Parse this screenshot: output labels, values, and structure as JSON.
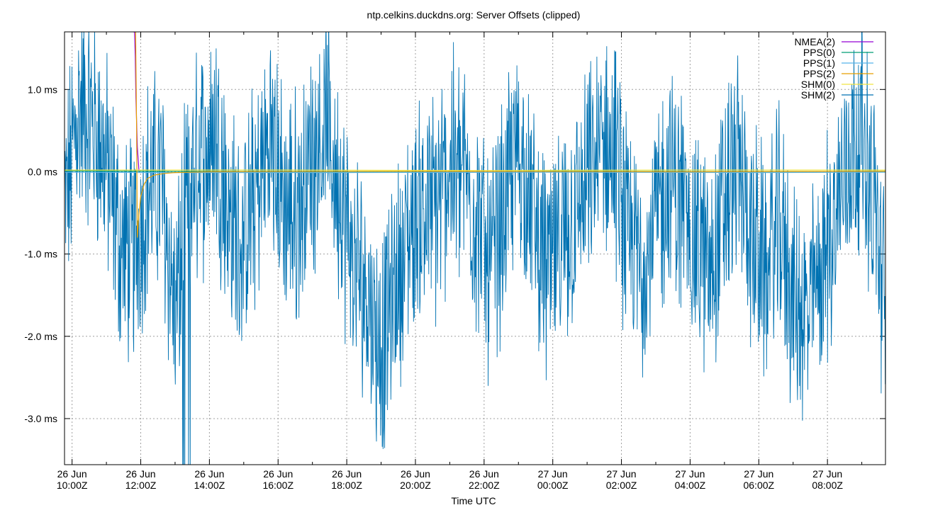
{
  "chart_data": {
    "type": "line",
    "title": "ntp.celkins.duckdns.org: Server Offsets (clipped)",
    "xlabel": "Time UTC",
    "ylabel": "",
    "x_unit": "hours since 26 Jun 09:00Z",
    "xlim": [
      9.78,
      33.69
    ],
    "ylim": [
      -3.56,
      1.7
    ],
    "y_unit": "ms",
    "grid": true,
    "legend_position": "top-right",
    "x_ticks": [
      {
        "value": 10,
        "date": "26 Jun",
        "time": "10:00Z"
      },
      {
        "value": 12,
        "date": "26 Jun",
        "time": "12:00Z"
      },
      {
        "value": 14,
        "date": "26 Jun",
        "time": "14:00Z"
      },
      {
        "value": 16,
        "date": "26 Jun",
        "time": "16:00Z"
      },
      {
        "value": 18,
        "date": "26 Jun",
        "time": "18:00Z"
      },
      {
        "value": 20,
        "date": "26 Jun",
        "time": "20:00Z"
      },
      {
        "value": 22,
        "date": "26 Jun",
        "time": "22:00Z"
      },
      {
        "value": 24,
        "date": "27 Jun",
        "time": "00:00Z"
      },
      {
        "value": 26,
        "date": "27 Jun",
        "time": "02:00Z"
      },
      {
        "value": 28,
        "date": "27 Jun",
        "time": "04:00Z"
      },
      {
        "value": 30,
        "date": "27 Jun",
        "time": "06:00Z"
      },
      {
        "value": 32,
        "date": "27 Jun",
        "time": "08:00Z"
      }
    ],
    "y_ticks": [
      {
        "value": 1.0,
        "label": "1.0 ms"
      },
      {
        "value": 0.0,
        "label": "0.0 ms"
      },
      {
        "value": -1.0,
        "label": "-1.0 ms"
      },
      {
        "value": -2.0,
        "label": "-2.0 ms"
      },
      {
        "value": -3.0,
        "label": "-3.0 ms"
      }
    ],
    "series": [
      {
        "name": "NMEA(2)",
        "color": "#9400d3",
        "kind": "spike",
        "x": [
          11.78,
          11.8,
          11.82,
          11.84,
          11.86,
          11.9,
          11.95
        ],
        "y": [
          1.7,
          1.7,
          1.7,
          1.4,
          0.9,
          0.3,
          0.0
        ]
      },
      {
        "name": "PPS(0)",
        "color": "#009e73",
        "kind": "flat",
        "x": [
          9.78,
          12.5,
          18.0,
          24.0,
          30.0,
          33.69
        ],
        "y": [
          0.01,
          0.005,
          0.0,
          0.005,
          0.0,
          0.005
        ]
      },
      {
        "name": "PPS(1)",
        "color": "#56b4e9",
        "kind": "flat",
        "x": [
          9.78,
          12.5,
          18.0,
          24.0,
          30.0,
          33.69
        ],
        "y": [
          -0.005,
          -0.01,
          -0.01,
          -0.005,
          -0.01,
          -0.005
        ]
      },
      {
        "name": "PPS(2)",
        "color": "#e69f00",
        "kind": "settle",
        "x": [
          11.85,
          11.88,
          11.9,
          11.95,
          12.0,
          12.1,
          12.2,
          12.4,
          12.7,
          13.0,
          14.0,
          20.0,
          28.0,
          33.69
        ],
        "y": [
          1.7,
          0.5,
          -0.8,
          -0.5,
          -0.3,
          -0.15,
          -0.08,
          -0.04,
          -0.02,
          -0.01,
          0.0,
          0.005,
          0.0,
          0.005
        ]
      },
      {
        "name": "SHM(0)",
        "color": "#f0e442",
        "kind": "flat",
        "x": [
          9.78,
          16.0,
          22.0,
          28.0,
          33.69
        ],
        "y": [
          0.02,
          0.02,
          0.015,
          0.02,
          0.02
        ]
      },
      {
        "name": "SHM(2)",
        "color": "#0072b2",
        "kind": "noisy",
        "x": [
          9.78,
          10.2,
          10.6,
          11.0,
          11.4,
          11.8,
          12.2,
          12.6,
          13.0,
          13.4,
          13.8,
          14.2,
          14.6,
          15.0,
          15.4,
          15.8,
          16.2,
          16.6,
          17.0,
          17.4,
          17.8,
          18.2,
          18.6,
          19.0,
          19.4,
          19.8,
          20.2,
          20.6,
          21.0,
          21.4,
          21.8,
          22.2,
          22.6,
          23.0,
          23.4,
          23.8,
          24.2,
          24.6,
          25.0,
          25.4,
          25.8,
          26.2,
          26.6,
          27.0,
          27.4,
          27.8,
          28.2,
          28.6,
          29.0,
          29.4,
          29.8,
          30.2,
          30.6,
          31.0,
          31.4,
          31.8,
          32.2,
          32.6,
          33.0,
          33.4,
          33.69
        ],
        "y": [
          -0.5,
          0.8,
          0.6,
          0.1,
          -0.9,
          -1.0,
          -0.2,
          -0.1,
          -1.8,
          -0.2,
          0.2,
          0.5,
          -0.6,
          -0.9,
          -0.2,
          0.4,
          -0.5,
          -0.4,
          0.2,
          0.6,
          -0.3,
          -1.2,
          -1.4,
          -2.2,
          -1.4,
          -0.8,
          -0.4,
          -0.5,
          0.1,
          0.0,
          -0.6,
          -1.2,
          -0.4,
          0.3,
          -0.5,
          -1.2,
          -1.0,
          -0.6,
          -0.2,
          0.3,
          0.2,
          -0.9,
          -1.1,
          -0.6,
          -0.1,
          -0.4,
          -0.9,
          -1.2,
          -0.4,
          0.1,
          -0.8,
          -1.2,
          -0.6,
          -1.6,
          -1.8,
          -1.2,
          -0.6,
          0.2,
          0.5,
          -0.5,
          -1.8
        ]
      }
    ]
  }
}
